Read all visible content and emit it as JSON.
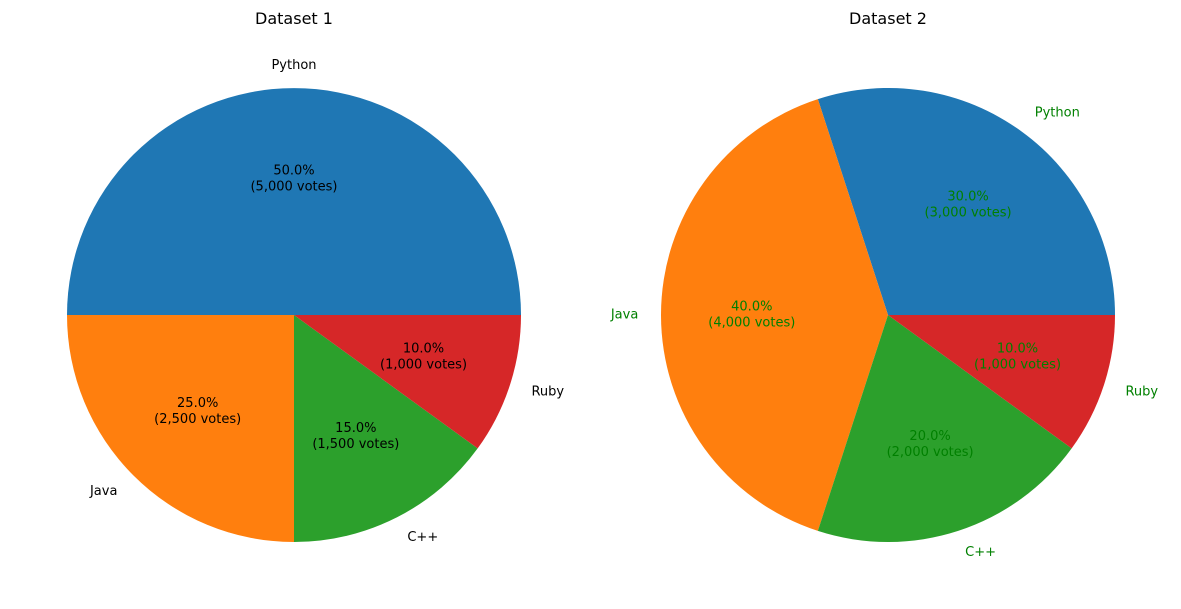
{
  "chart_data": [
    {
      "type": "pie",
      "title": "Dataset 1",
      "text_color": "#000000",
      "categories": [
        "Python",
        "Java",
        "C++",
        "Ruby"
      ],
      "values": [
        5000,
        2500,
        1500,
        1000
      ],
      "percent_labels": [
        "50.0%",
        "25.0%",
        "15.0%",
        "10.0%"
      ],
      "vote_labels": [
        "(5,000 votes)",
        "(2,500 votes)",
        "(1,500 votes)",
        "(1,000 votes)"
      ],
      "colors": [
        "#1f77b4",
        "#ff7f0e",
        "#2ca02c",
        "#d62728"
      ],
      "start_angle_deg": 0,
      "direction": "counterclockwise"
    },
    {
      "type": "pie",
      "title": "Dataset 2",
      "text_color": "#008000",
      "categories": [
        "Python",
        "Java",
        "C++",
        "Ruby"
      ],
      "values": [
        3000,
        4000,
        2000,
        1000
      ],
      "percent_labels": [
        "30.0%",
        "40.0%",
        "20.0%",
        "10.0%"
      ],
      "vote_labels": [
        "(3,000 votes)",
        "(4,000 votes)",
        "(2,000 votes)",
        "(1,000 votes)"
      ],
      "colors": [
        "#1f77b4",
        "#ff7f0e",
        "#2ca02c",
        "#d62728"
      ],
      "start_angle_deg": 0,
      "direction": "counterclockwise"
    }
  ]
}
